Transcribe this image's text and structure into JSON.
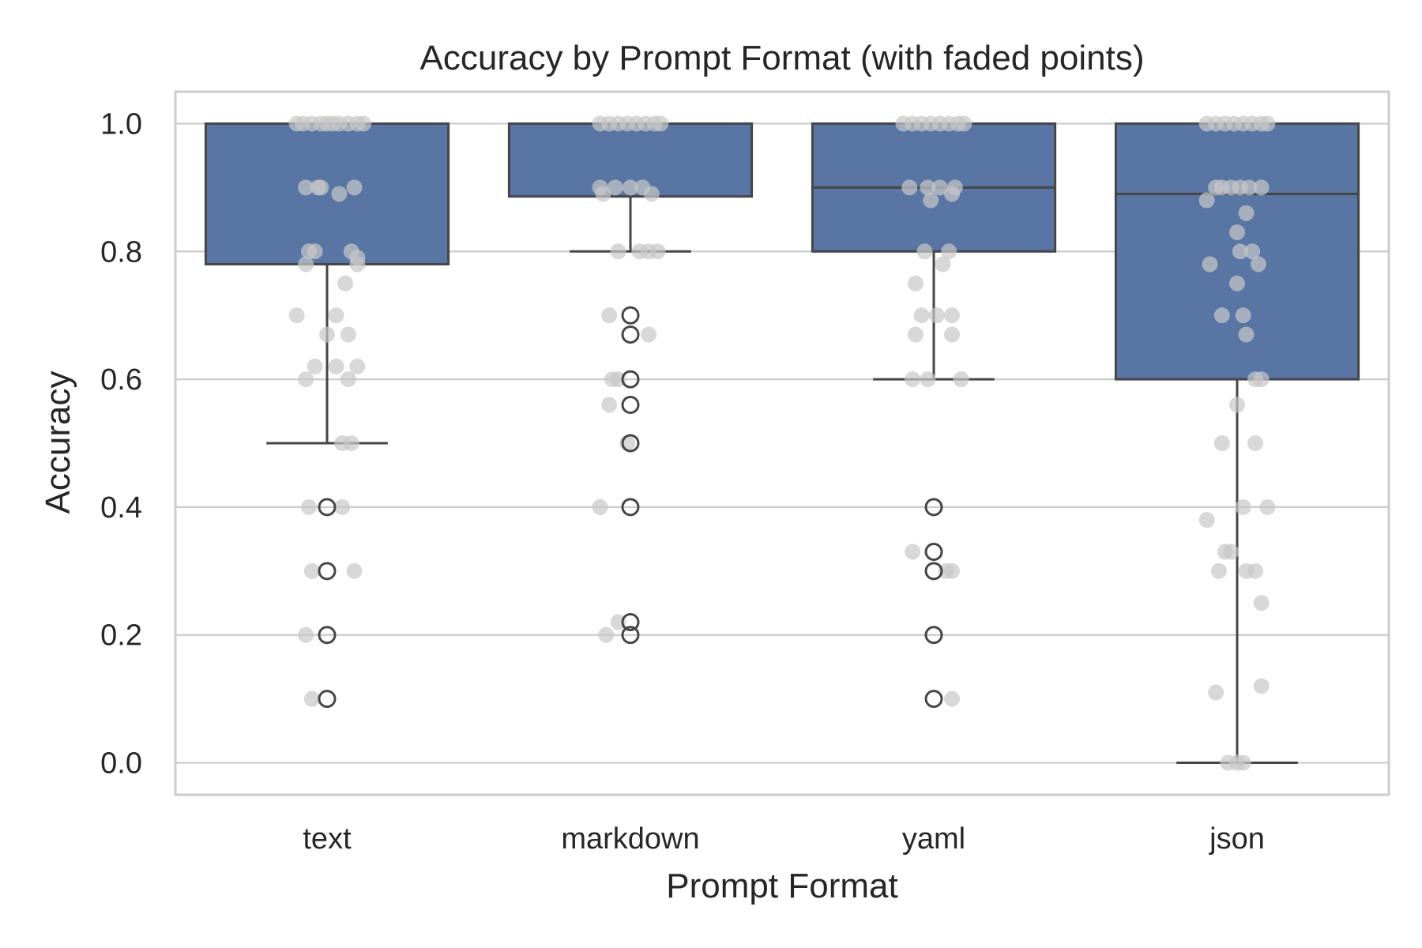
{
  "chart_data": {
    "type": "box",
    "title": "Accuracy by Prompt Format (with faded points)",
    "xlabel": "Prompt Format",
    "ylabel": "Accuracy",
    "categories": [
      "text",
      "markdown",
      "yaml",
      "json"
    ],
    "ylim": [
      -0.05,
      1.05
    ],
    "yticks": [
      0.0,
      0.2,
      0.4,
      0.6,
      0.8,
      1.0
    ],
    "ytick_labels": [
      "0.0",
      "0.2",
      "0.4",
      "0.6",
      "0.8",
      "1.0"
    ],
    "grid": "horizontal",
    "colors": {
      "box_fill": "#5875a4",
      "box_edge": "#464646",
      "point": "#c8c8c8",
      "grid": "#cccccc",
      "frame": "#cccccc"
    },
    "boxes": [
      {
        "category": "text",
        "q1": 0.78,
        "median": 1.0,
        "q3": 1.0,
        "whisker_low": 0.5,
        "whisker_high": 1.0,
        "outliers": [
          0.4,
          0.3,
          0.2,
          0.1
        ]
      },
      {
        "category": "markdown",
        "q1": 0.886,
        "median": 1.0,
        "q3": 1.0,
        "whisker_low": 0.8,
        "whisker_high": 1.0,
        "outliers": [
          0.7,
          0.67,
          0.6,
          0.56,
          0.5,
          0.4,
          0.22,
          0.2
        ]
      },
      {
        "category": "yaml",
        "q1": 0.8,
        "median": 0.9,
        "q3": 1.0,
        "whisker_low": 0.6,
        "whisker_high": 1.0,
        "outliers": [
          0.4,
          0.33,
          0.3,
          0.2,
          0.1
        ]
      },
      {
        "category": "json",
        "q1": 0.6,
        "median": 0.89,
        "q3": 1.0,
        "whisker_low": 0.0,
        "whisker_high": 1.0,
        "outliers": []
      }
    ],
    "points": [
      {
        "category": "text",
        "samples": [
          [
            -0.1,
            1.0
          ],
          [
            -0.08,
            1.0
          ],
          [
            -0.05,
            1.0
          ],
          [
            -0.02,
            1.0
          ],
          [
            0.0,
            1.0
          ],
          [
            0.02,
            1.0
          ],
          [
            0.04,
            1.0
          ],
          [
            0.07,
            1.0
          ],
          [
            0.1,
            1.0
          ],
          [
            0.12,
            1.0
          ],
          [
            -0.07,
            0.9
          ],
          [
            -0.03,
            0.9
          ],
          [
            -0.02,
            0.9
          ],
          [
            0.04,
            0.89
          ],
          [
            0.09,
            0.9
          ],
          [
            -0.06,
            0.8
          ],
          [
            -0.04,
            0.8
          ],
          [
            -0.07,
            0.78
          ],
          [
            0.08,
            0.8
          ],
          [
            0.1,
            0.79
          ],
          [
            0.1,
            0.78
          ],
          [
            0.06,
            0.75
          ],
          [
            -0.1,
            0.7
          ],
          [
            0.03,
            0.7
          ],
          [
            0.0,
            0.67
          ],
          [
            0.07,
            0.67
          ],
          [
            -0.04,
            0.62
          ],
          [
            0.03,
            0.62
          ],
          [
            0.1,
            0.62
          ],
          [
            -0.07,
            0.6
          ],
          [
            0.07,
            0.6
          ],
          [
            0.05,
            0.5
          ],
          [
            0.08,
            0.5
          ],
          [
            -0.06,
            0.4
          ],
          [
            0.05,
            0.4
          ],
          [
            -0.05,
            0.3
          ],
          [
            0.09,
            0.3
          ],
          [
            -0.07,
            0.2
          ],
          [
            -0.05,
            0.1
          ]
        ]
      },
      {
        "category": "markdown",
        "samples": [
          [
            -0.1,
            1.0
          ],
          [
            -0.07,
            1.0
          ],
          [
            -0.04,
            1.0
          ],
          [
            -0.01,
            1.0
          ],
          [
            0.02,
            1.0
          ],
          [
            0.05,
            1.0
          ],
          [
            0.08,
            1.0
          ],
          [
            0.1,
            1.0
          ],
          [
            -0.1,
            0.9
          ],
          [
            -0.05,
            0.9
          ],
          [
            0.0,
            0.9
          ],
          [
            0.04,
            0.9
          ],
          [
            0.07,
            0.89
          ],
          [
            -0.09,
            0.89
          ],
          [
            -0.04,
            0.8
          ],
          [
            0.03,
            0.8
          ],
          [
            0.06,
            0.8
          ],
          [
            0.09,
            0.8
          ],
          [
            -0.07,
            0.7
          ],
          [
            0.06,
            0.67
          ],
          [
            -0.06,
            0.6
          ],
          [
            -0.04,
            0.6
          ],
          [
            -0.07,
            0.56
          ],
          [
            -0.01,
            0.5
          ],
          [
            -0.1,
            0.4
          ],
          [
            -0.04,
            0.22
          ],
          [
            -0.08,
            0.2
          ]
        ]
      },
      {
        "category": "yaml",
        "samples": [
          [
            -0.1,
            1.0
          ],
          [
            -0.07,
            1.0
          ],
          [
            -0.04,
            1.0
          ],
          [
            -0.01,
            1.0
          ],
          [
            0.02,
            1.0
          ],
          [
            0.05,
            1.0
          ],
          [
            0.08,
            1.0
          ],
          [
            0.1,
            1.0
          ],
          [
            -0.08,
            0.9
          ],
          [
            -0.02,
            0.9
          ],
          [
            0.02,
            0.9
          ],
          [
            0.07,
            0.9
          ],
          [
            -0.01,
            0.88
          ],
          [
            0.06,
            0.89
          ],
          [
            -0.03,
            0.8
          ],
          [
            0.05,
            0.8
          ],
          [
            0.03,
            0.78
          ],
          [
            -0.06,
            0.75
          ],
          [
            -0.04,
            0.7
          ],
          [
            0.01,
            0.7
          ],
          [
            0.06,
            0.7
          ],
          [
            -0.06,
            0.67
          ],
          [
            0.06,
            0.67
          ],
          [
            -0.07,
            0.6
          ],
          [
            -0.02,
            0.6
          ],
          [
            0.09,
            0.6
          ],
          [
            -0.07,
            0.33
          ],
          [
            0.04,
            0.3
          ],
          [
            0.06,
            0.3
          ],
          [
            0.06,
            0.1
          ]
        ]
      },
      {
        "category": "json",
        "samples": [
          [
            -0.1,
            1.0
          ],
          [
            -0.07,
            1.0
          ],
          [
            -0.04,
            1.0
          ],
          [
            -0.01,
            1.0
          ],
          [
            0.02,
            1.0
          ],
          [
            0.05,
            1.0
          ],
          [
            0.08,
            1.0
          ],
          [
            0.1,
            1.0
          ],
          [
            -0.07,
            0.9
          ],
          [
            -0.05,
            0.9
          ],
          [
            -0.02,
            0.9
          ],
          [
            0.01,
            0.9
          ],
          [
            0.04,
            0.9
          ],
          [
            0.08,
            0.9
          ],
          [
            -0.1,
            0.88
          ],
          [
            0.03,
            0.86
          ],
          [
            0.0,
            0.83
          ],
          [
            0.01,
            0.8
          ],
          [
            0.05,
            0.8
          ],
          [
            0.07,
            0.78
          ],
          [
            -0.09,
            0.78
          ],
          [
            0.0,
            0.75
          ],
          [
            -0.05,
            0.7
          ],
          [
            0.02,
            0.7
          ],
          [
            0.03,
            0.67
          ],
          [
            0.06,
            0.6
          ],
          [
            0.08,
            0.6
          ],
          [
            0.0,
            0.56
          ],
          [
            -0.05,
            0.5
          ],
          [
            0.06,
            0.5
          ],
          [
            0.02,
            0.4
          ],
          [
            0.1,
            0.4
          ],
          [
            -0.1,
            0.38
          ],
          [
            -0.04,
            0.33
          ],
          [
            -0.02,
            0.33
          ],
          [
            -0.06,
            0.3
          ],
          [
            0.03,
            0.3
          ],
          [
            0.06,
            0.3
          ],
          [
            0.08,
            0.25
          ],
          [
            0.08,
            0.12
          ],
          [
            -0.07,
            0.11
          ],
          [
            -0.03,
            0.0
          ],
          [
            0.0,
            0.0
          ],
          [
            0.02,
            0.0
          ]
        ]
      }
    ]
  }
}
